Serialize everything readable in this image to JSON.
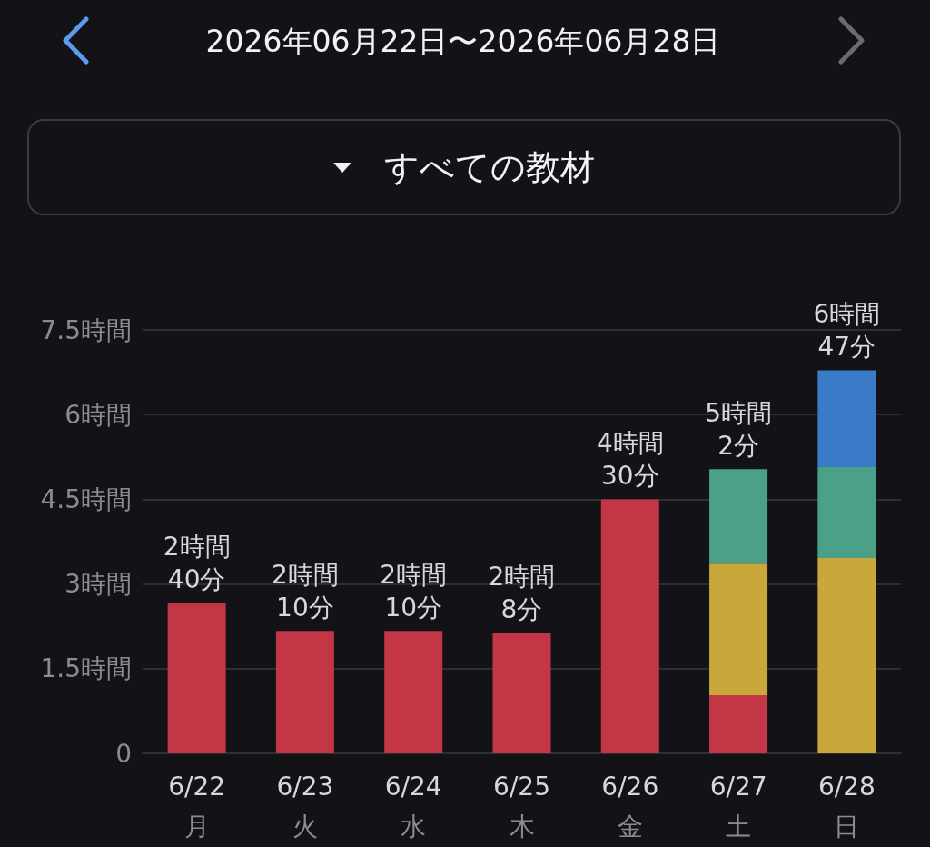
{
  "chart_data": {
    "type": "bar",
    "title": "2026年06月22日〜2026年06月28日",
    "subtitle": "すべての教材",
    "categories": [
      "6/22\n月",
      "6/23\n火",
      "6/24\n水",
      "6/25\n木",
      "6/26\n金",
      "6/27\n土",
      "6/28\n日"
    ],
    "series": [
      {
        "color": "#c23646",
        "values": [
          2.667,
          2.167,
          2.167,
          2.133,
          4.5,
          1.03,
          null
        ]
      },
      {
        "color": "#c9a73a",
        "values": [
          null,
          null,
          null,
          null,
          null,
          2.33,
          3.46
        ]
      },
      {
        "color": "#4aa187",
        "values": [
          null,
          null,
          null,
          null,
          null,
          1.673,
          1.61
        ]
      },
      {
        "color": "#3a7bc8",
        "values": [
          null,
          null,
          null,
          null,
          null,
          null,
          1.713
        ]
      }
    ],
    "stacked": true,
    "ylim": [
      0,
      7.5
    ],
    "yticks": [
      0,
      {
        "value": 1.5,
        "label": "1.5時間"
      },
      {
        "value": 3,
        "label": "3時間"
      },
      {
        "value": 4.5,
        "label": "4.5時間"
      },
      {
        "value": 6,
        "label": "6時間"
      },
      {
        "value": 7.5,
        "label": "7.5時間"
      }
    ],
    "grid": "y",
    "totals": [
      "2時間\n40分",
      "2時間\n10分",
      "2時間\n10分",
      "2時間\n8分",
      "4時間\n30分",
      "5時間\n2分",
      "6時間\n47分"
    ]
  }
}
